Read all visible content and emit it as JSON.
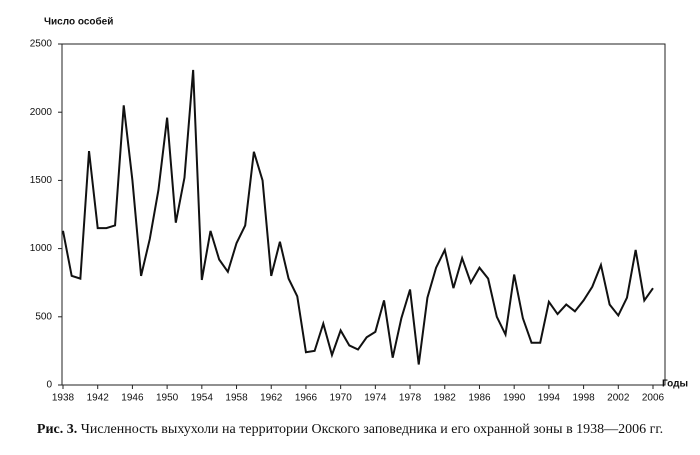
{
  "chart_data": {
    "type": "line",
    "y_label": "Число особей",
    "x_label": "Годы",
    "caption_label": "Рис. 3.",
    "caption": "Численность выхухоли на территории Окского заповедника и его охранной зоны в 1938—2006 гг.",
    "x": [
      1938,
      1939,
      1940,
      1941,
      1942,
      1943,
      1944,
      1945,
      1946,
      1947,
      1948,
      1949,
      1950,
      1951,
      1952,
      1953,
      1954,
      1955,
      1956,
      1957,
      1958,
      1959,
      1960,
      1961,
      1962,
      1963,
      1964,
      1965,
      1966,
      1967,
      1968,
      1969,
      1970,
      1971,
      1972,
      1973,
      1974,
      1975,
      1976,
      1977,
      1978,
      1979,
      1980,
      1981,
      1982,
      1983,
      1984,
      1985,
      1986,
      1987,
      1988,
      1989,
      1990,
      1991,
      1992,
      1993,
      1994,
      1995,
      1996,
      1997,
      1998,
      1999,
      2000,
      2001,
      2002,
      2003,
      2004,
      2005,
      2006
    ],
    "series": [
      {
        "color": "#111111",
        "values": [
          1130,
          800,
          780,
          1715,
          1150,
          1150,
          1170,
          2050,
          1500,
          800,
          1070,
          1430,
          1960,
          1190,
          1520,
          2310,
          770,
          1130,
          920,
          830,
          1040,
          1170,
          1710,
          1500,
          800,
          1050,
          780,
          650,
          240,
          250,
          450,
          220,
          400,
          290,
          260,
          350,
          390,
          620,
          200,
          490,
          700,
          150,
          640,
          860,
          990,
          710,
          930,
          750,
          860,
          780,
          500,
          370,
          810,
          490,
          310,
          310,
          610,
          520,
          590,
          540,
          620,
          720,
          880,
          590,
          510,
          640,
          990,
          620,
          710
        ]
      }
    ],
    "xlim": [
      1938,
      2006
    ],
    "xticks": [
      1938,
      1942,
      1946,
      1950,
      1954,
      1958,
      1962,
      1966,
      1970,
      1974,
      1978,
      1982,
      1986,
      1990,
      1994,
      1998,
      2002,
      2006
    ],
    "ylim": [
      0,
      2500
    ],
    "yticks": [
      0,
      500,
      1000,
      1500,
      2000,
      2500
    ]
  }
}
